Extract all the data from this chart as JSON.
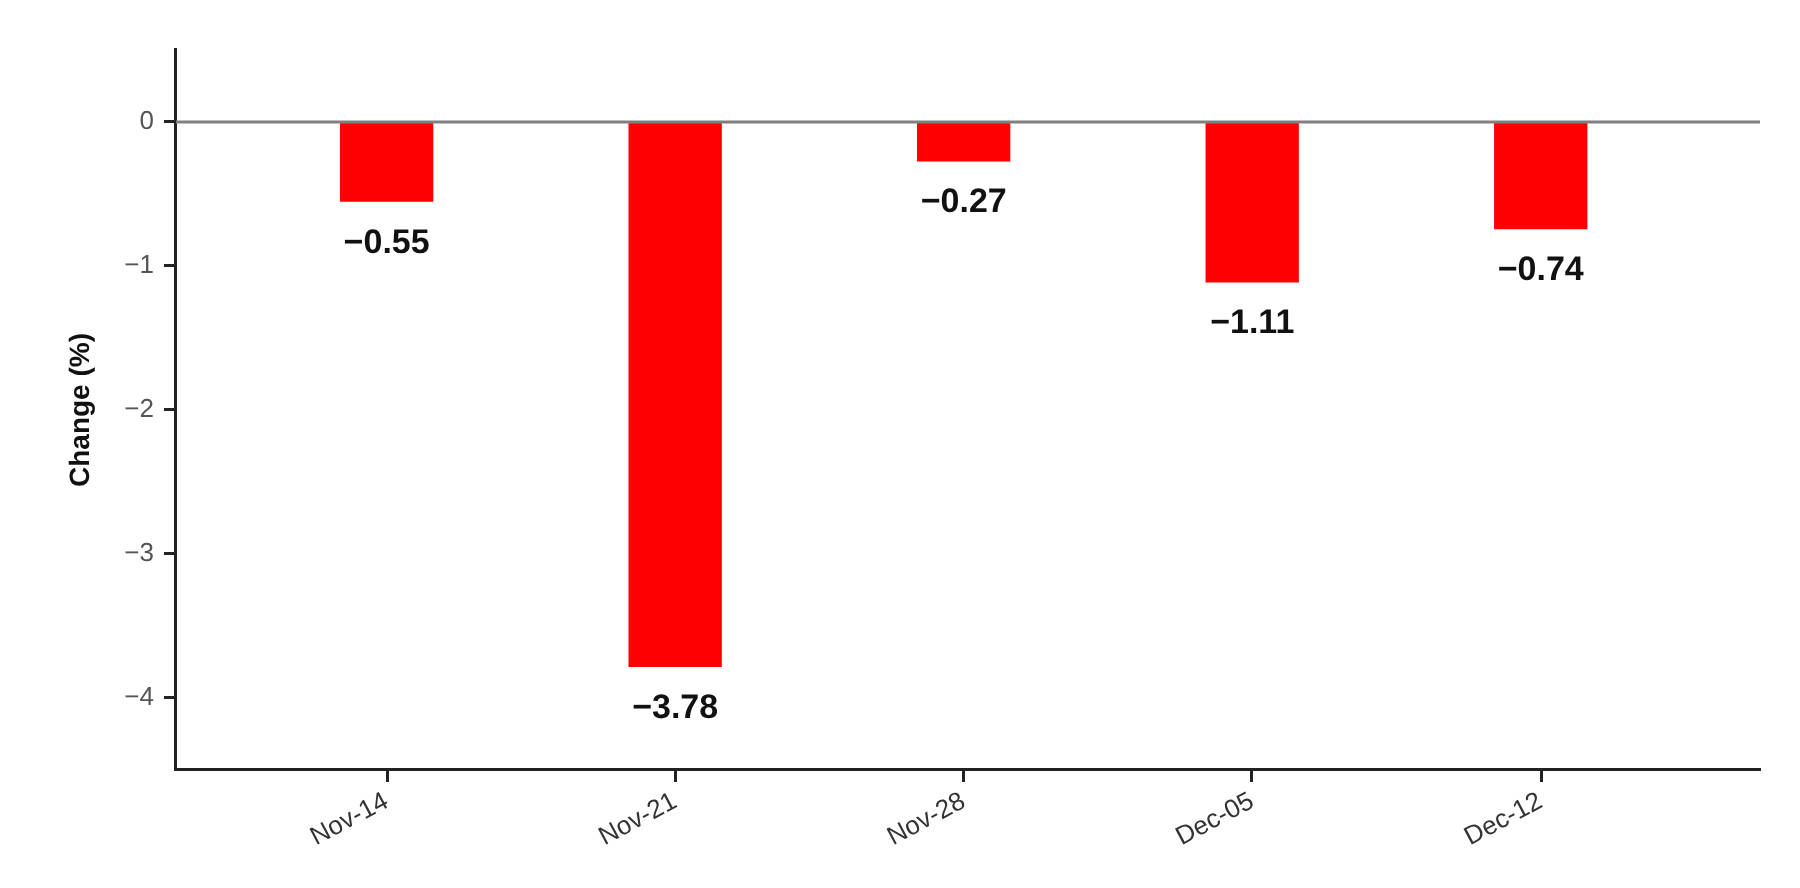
{
  "chart_data": {
    "type": "bar",
    "categories": [
      "Nov-14",
      "Nov-21",
      "Nov-28",
      "Dec-05",
      "Dec-12"
    ],
    "values": [
      -0.55,
      -3.78,
      -0.27,
      -1.11,
      -0.74
    ],
    "color": "#ff0000",
    "value_labels": [
      "−0.55",
      "−3.78",
      "−0.27",
      "−1.11",
      "−0.74"
    ],
    "ylabel": "Change (%)",
    "ylim": [
      -4.5,
      0.5
    ],
    "yticks": [
      {
        "value": -4,
        "label": "−4"
      },
      {
        "value": -3,
        "label": "−3"
      },
      {
        "value": -2,
        "label": "−2"
      },
      {
        "value": -1,
        "label": "−1"
      },
      0
    ],
    "ref_lines": [
      {
        "axis": "y",
        "value": 0,
        "color": "#808080"
      }
    ],
    "grid": false,
    "legend": false
  }
}
